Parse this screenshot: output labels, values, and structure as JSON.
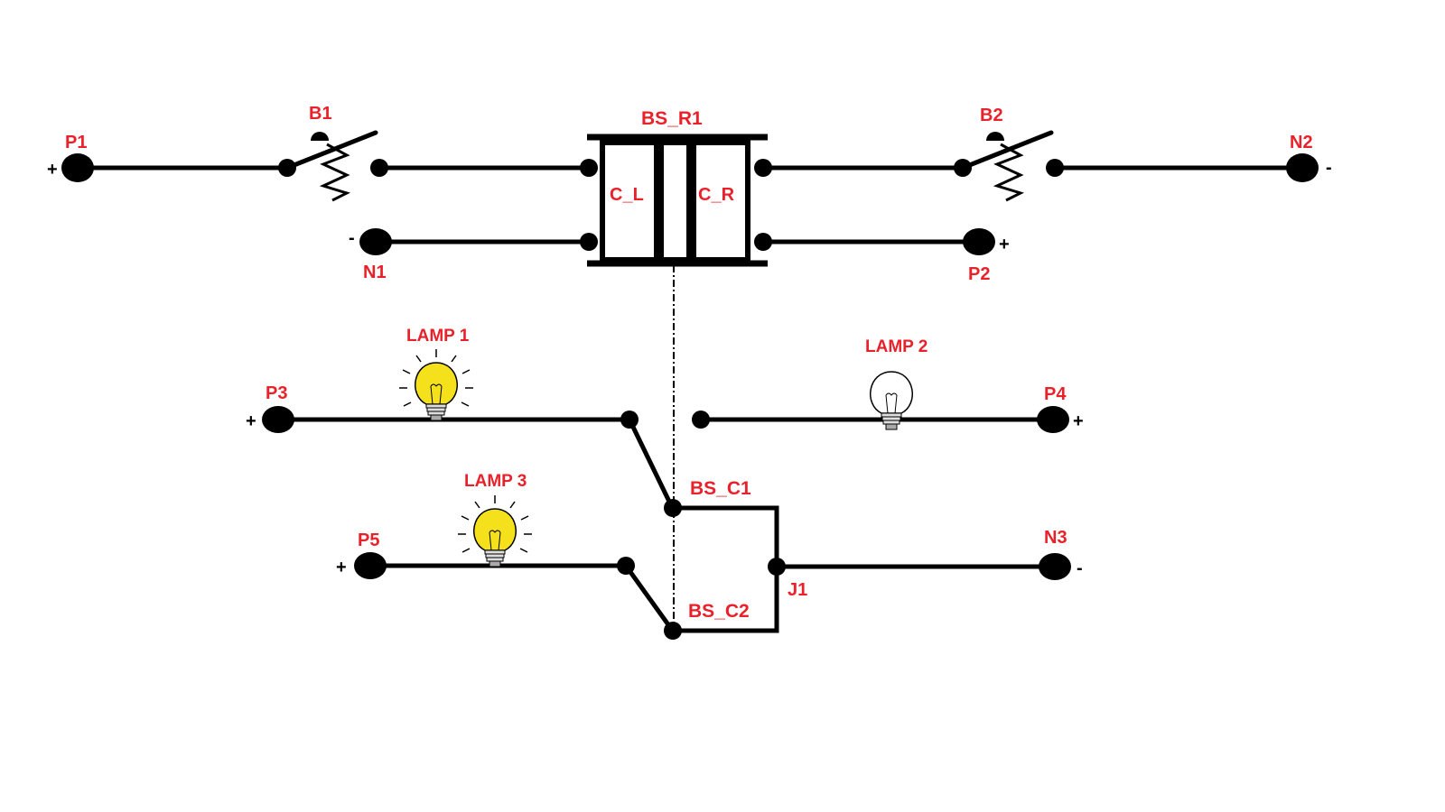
{
  "labels": {
    "p1": "P1",
    "n1": "N1",
    "b1": "B1",
    "bs_r1": "BS_R1",
    "c_l": "C_L",
    "c_r": "C_R",
    "b2": "B2",
    "n2": "N2",
    "p2": "P2",
    "p3": "P3",
    "lamp1": "LAMP 1",
    "lamp2": "LAMP 2",
    "p4": "P4",
    "bs_c1": "BS_C1",
    "bs_c2": "BS_C2",
    "j1": "J1",
    "lamp3": "LAMP 3",
    "p5": "P5",
    "n3": "N3"
  },
  "signs": {
    "plus": "+",
    "minus": "-"
  },
  "lamps": {
    "lamp1": "on",
    "lamp2": "off",
    "lamp3": "on"
  },
  "colors": {
    "label": "#e8212a",
    "wire": "#000000",
    "lamp_on": "#f5e11b",
    "lamp_off": "#ffffff"
  }
}
